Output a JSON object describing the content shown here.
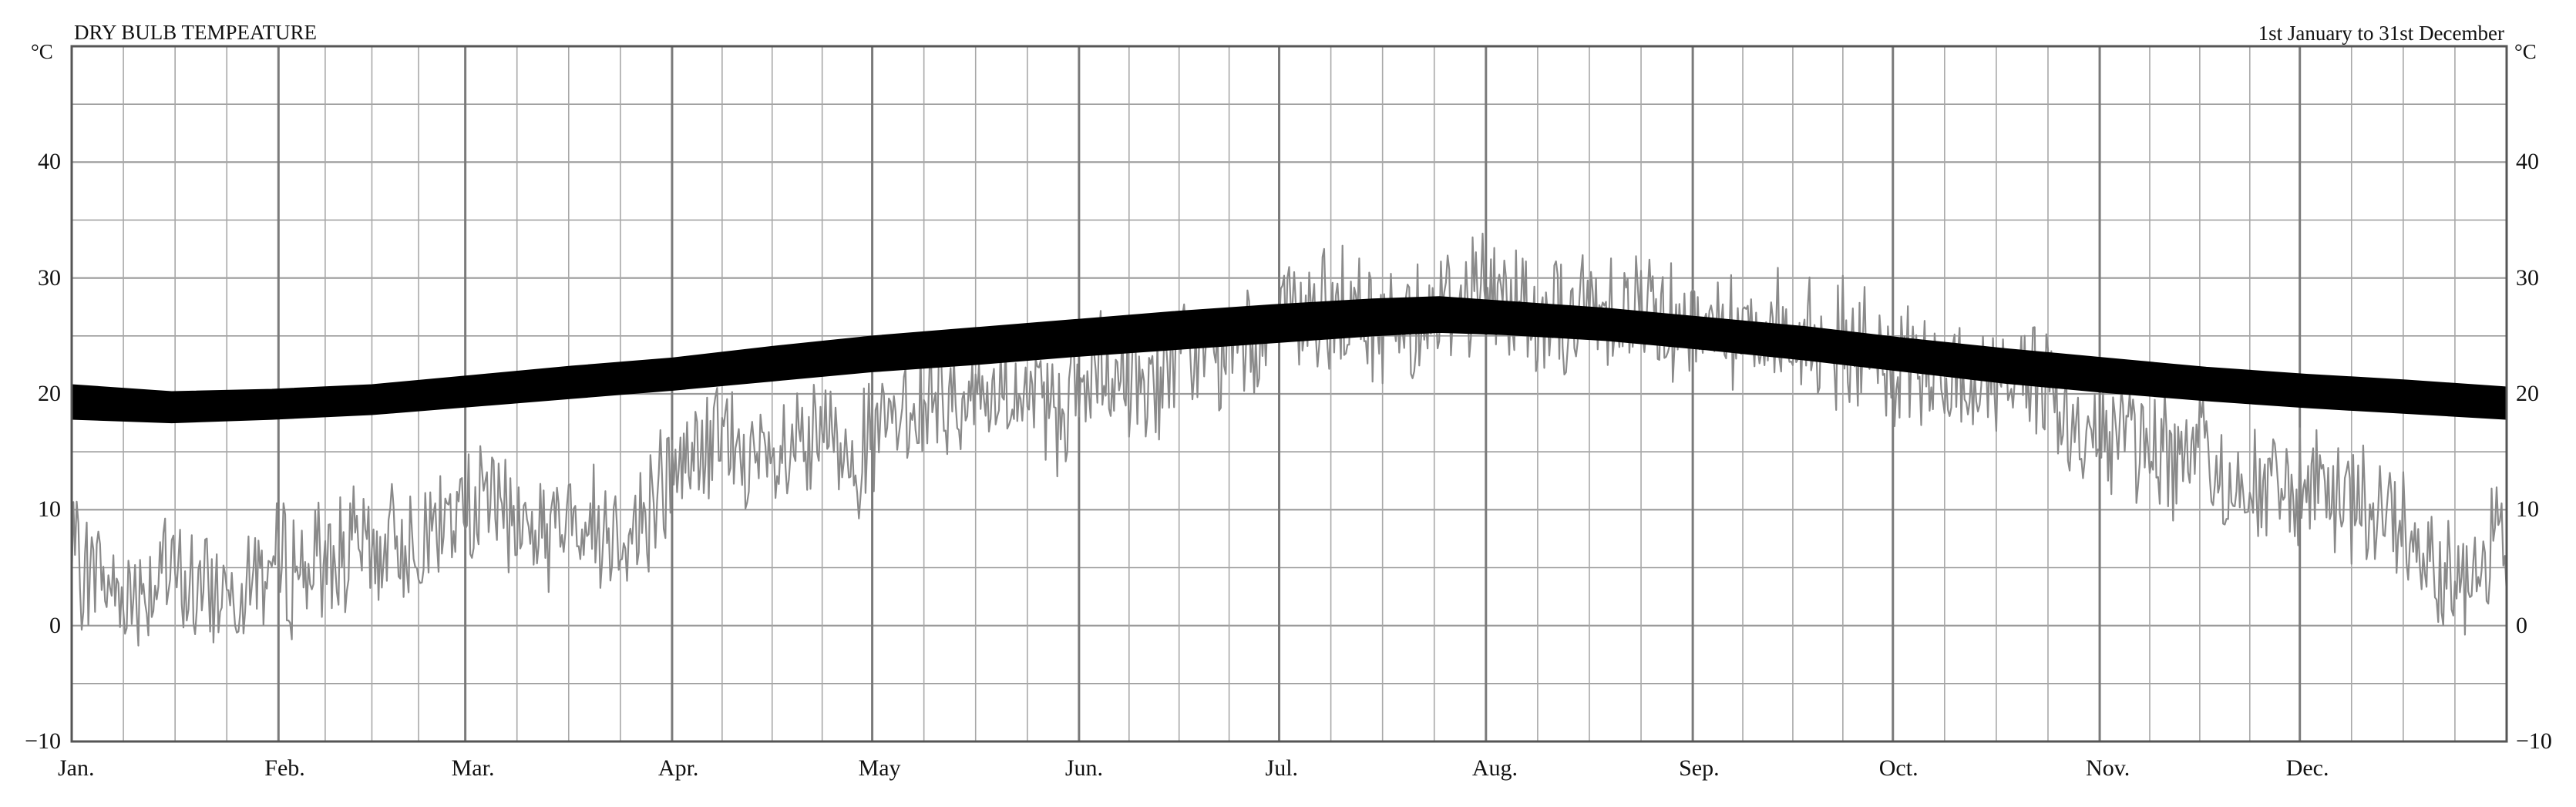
{
  "chart_data": {
    "type": "line",
    "title": "DRY BULB TEMPEATURE",
    "subtitle": "1st January to 31st December",
    "y_unit_left": "°C",
    "y_unit_right": "°C",
    "ylim": [
      -10,
      50
    ],
    "y_ticks": [
      -10,
      0,
      10,
      20,
      30,
      40
    ],
    "y_tick_labels": [
      "−10",
      "0",
      "10",
      "20",
      "30",
      "40"
    ],
    "xlim": [
      0,
      365
    ],
    "months": [
      "Jan.",
      "Feb.",
      "Mar.",
      "Apr.",
      "May",
      "Jun.",
      "Jul.",
      "Aug.",
      "Sep.",
      "Oct.",
      "Nov.",
      "Dec."
    ],
    "month_start_days": [
      0,
      31,
      59,
      90,
      120,
      151,
      181,
      212,
      243,
      273,
      304,
      334
    ],
    "grid": true,
    "series": [
      {
        "role": "daily dry bulb temperature (hourly trace)",
        "color": "#8a8a8a",
        "x": [
          0,
          7,
          14,
          21,
          28,
          35,
          42,
          49,
          56,
          63,
          70,
          77,
          84,
          91,
          98,
          105,
          112,
          119,
          126,
          133,
          140,
          147,
          154,
          161,
          168,
          175,
          182,
          189,
          196,
          203,
          210,
          217,
          224,
          231,
          238,
          245,
          252,
          259,
          266,
          273,
          280,
          287,
          294,
          301,
          308,
          315,
          322,
          329,
          336,
          343,
          350,
          357,
          364
        ],
        "y": [
          6,
          3,
          4,
          3,
          5,
          5,
          6,
          7,
          9,
          11,
          8,
          9,
          8,
          14,
          16,
          13,
          16,
          15,
          19,
          20,
          20,
          19,
          21,
          21,
          23,
          24,
          26,
          27,
          26,
          27,
          29,
          28,
          26,
          28,
          27,
          26,
          26,
          25,
          24,
          22,
          21,
          21,
          22,
          16,
          17,
          15,
          13,
          12,
          11,
          10,
          9,
          4,
          8
        ]
      },
      {
        "role": "comfort band",
        "color": "#000000",
        "x": [
          0,
          15,
          30,
          45,
          60,
          75,
          90,
          105,
          120,
          135,
          150,
          165,
          180,
          195,
          205,
          215,
          230,
          245,
          260,
          275,
          290,
          305,
          320,
          335,
          350,
          365
        ],
        "lower": [
          17.8,
          17.5,
          17.8,
          18.2,
          18.9,
          19.6,
          20.3,
          21.1,
          21.9,
          22.5,
          23.2,
          23.8,
          24.4,
          25.0,
          25.3,
          25.1,
          24.6,
          23.8,
          22.9,
          21.9,
          20.9,
          20.1,
          19.4,
          18.8,
          18.3,
          17.8
        ],
        "upper": [
          20.8,
          20.2,
          20.4,
          20.8,
          21.6,
          22.4,
          23.1,
          24.1,
          25.0,
          25.7,
          26.4,
          27.1,
          27.7,
          28.2,
          28.4,
          28.0,
          27.4,
          26.6,
          25.8,
          24.8,
          23.9,
          23.1,
          22.3,
          21.7,
          21.2,
          20.6
        ]
      }
    ]
  }
}
